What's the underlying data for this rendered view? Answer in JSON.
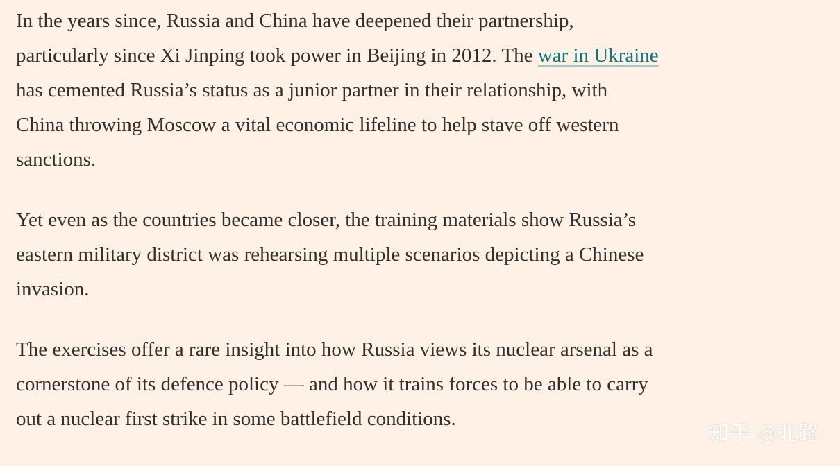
{
  "paragraphs": [
    {
      "lines": [
        {
          "text": "In the years since, Russia and China have deepened their partnership,"
        },
        {
          "text": "particularly since Xi Jinping took power in Beijing in 2012. The",
          "link": "war in Ukraine"
        },
        {
          "text": "has cemented Russia’s status as a junior partner in their relationship, with"
        },
        {
          "text": "China throwing Moscow a vital economic lifeline to help stave off western"
        },
        {
          "text": "sanctions."
        }
      ]
    },
    {
      "lines": [
        {
          "text": "Yet even as the countries became closer, the training materials show Russia’s"
        },
        {
          "text": "eastern military district was rehearsing multiple scenarios depicting a Chinese"
        },
        {
          "text": "invasion."
        }
      ]
    },
    {
      "lines": [
        {
          "text": "The exercises offer a rare insight into how Russia views its nuclear arsenal as a"
        },
        {
          "text": "cornerstone of its defence policy — and how it trains forces to be able to carry"
        },
        {
          "text": "out a nuclear first strike in some battlefield conditions."
        }
      ]
    }
  ],
  "watermark": "知乎 @北路"
}
